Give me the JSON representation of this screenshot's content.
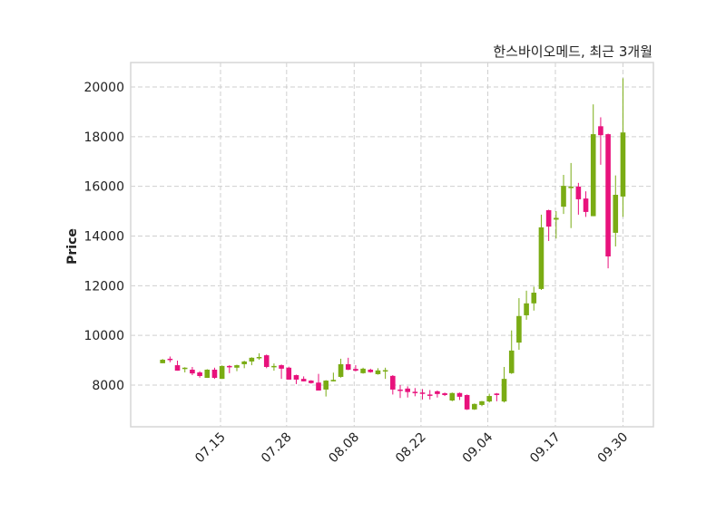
{
  "chart_data": {
    "type": "candlestick",
    "title": "한스바이오메드, 최근 3개월",
    "xlabel": "",
    "ylabel": "Price",
    "ylim": [
      6322,
      20985
    ],
    "xlim": [
      -4.3,
      66.1
    ],
    "yticks": [
      8000,
      10000,
      12000,
      14000,
      16000,
      18000,
      20000
    ],
    "xticks": [
      {
        "index": 7.8,
        "label": "07.15"
      },
      {
        "index": 16.7,
        "label": "07.28"
      },
      {
        "index": 25.8,
        "label": "08.08"
      },
      {
        "index": 34.8,
        "label": "08.22"
      },
      {
        "index": 43.8,
        "label": "09.04"
      },
      {
        "index": 52.9,
        "label": "09.17"
      },
      {
        "index": 62.0,
        "label": "09.30"
      }
    ],
    "grid": true,
    "colors": {
      "up": "#7aac14",
      "down": "#e8127c",
      "grid": "#cfcfcf",
      "frame": "#d6d6d6"
    },
    "ohlc": [
      [
        8880,
        9050,
        8880,
        9020
      ],
      [
        9060,
        9150,
        8920,
        9040
      ],
      [
        8800,
        8985,
        8580,
        8580
      ],
      [
        8680,
        8720,
        8510,
        8700
      ],
      [
        8620,
        8730,
        8400,
        8470
      ],
      [
        8510,
        8560,
        8300,
        8365
      ],
      [
        8290,
        8640,
        8290,
        8620
      ],
      [
        8620,
        8700,
        8250,
        8290
      ],
      [
        8250,
        8790,
        8250,
        8770
      ],
      [
        8770,
        8800,
        8480,
        8730
      ],
      [
        8700,
        8820,
        8560,
        8800
      ],
      [
        8840,
        8980,
        8680,
        8950
      ],
      [
        8950,
        9120,
        8800,
        9100
      ],
      [
        9100,
        9280,
        9020,
        9130
      ],
      [
        9200,
        9230,
        8680,
        8730
      ],
      [
        8730,
        8870,
        8580,
        8770
      ],
      [
        8800,
        8830,
        8250,
        8660
      ],
      [
        8700,
        8740,
        8220,
        8220
      ],
      [
        8400,
        8420,
        8040,
        8220
      ],
      [
        8250,
        8350,
        8150,
        8150
      ],
      [
        8180,
        8200,
        8060,
        8080
      ],
      [
        8100,
        8450,
        7780,
        7780
      ],
      [
        7820,
        8200,
        7540,
        8180
      ],
      [
        8150,
        8500,
        8150,
        8210
      ],
      [
        8330,
        9060,
        8300,
        8840
      ],
      [
        8840,
        9100,
        8600,
        8620
      ],
      [
        8650,
        8800,
        8550,
        8580
      ],
      [
        8480,
        8700,
        8460,
        8660
      ],
      [
        8620,
        8660,
        8500,
        8520
      ],
      [
        8440,
        8680,
        8420,
        8590
      ],
      [
        8580,
        8700,
        8250,
        8600
      ],
      [
        8370,
        8400,
        7620,
        7820
      ],
      [
        7820,
        8000,
        7480,
        7780
      ],
      [
        7860,
        7950,
        7500,
        7720
      ],
      [
        7730,
        7880,
        7550,
        7700
      ],
      [
        7700,
        7840,
        7420,
        7660
      ],
      [
        7620,
        7800,
        7420,
        7600
      ],
      [
        7750,
        7780,
        7500,
        7640
      ],
      [
        7670,
        7700,
        7560,
        7600
      ],
      [
        7380,
        7700,
        7350,
        7680
      ],
      [
        7680,
        7700,
        7400,
        7530
      ],
      [
        7600,
        7620,
        7000,
        7020
      ],
      [
        7020,
        7260,
        7000,
        7240
      ],
      [
        7200,
        7360,
        7150,
        7350
      ],
      [
        7340,
        7650,
        7300,
        7560
      ],
      [
        7660,
        7680,
        7350,
        7600
      ],
      [
        7340,
        8730,
        7300,
        8250
      ],
      [
        8480,
        10200,
        8450,
        9390
      ],
      [
        9710,
        11500,
        9420,
        10780
      ],
      [
        10810,
        11800,
        10630,
        11290
      ],
      [
        11290,
        11960,
        11000,
        11720
      ],
      [
        11870,
        14860,
        11830,
        14350
      ],
      [
        15040,
        15060,
        13800,
        14380
      ],
      [
        14660,
        15000,
        13900,
        14730
      ],
      [
        15180,
        16460,
        14890,
        16020
      ],
      [
        15930,
        16940,
        14320,
        15990
      ],
      [
        15990,
        16140,
        14860,
        15480
      ],
      [
        15510,
        15800,
        14770,
        14970
      ],
      [
        14800,
        19300,
        14800,
        18100
      ],
      [
        18420,
        18780,
        16870,
        18060
      ],
      [
        18100,
        18120,
        12700,
        13180
      ],
      [
        14130,
        16440,
        13580,
        15660
      ],
      [
        15590,
        20350,
        14770,
        18170
      ]
    ]
  }
}
